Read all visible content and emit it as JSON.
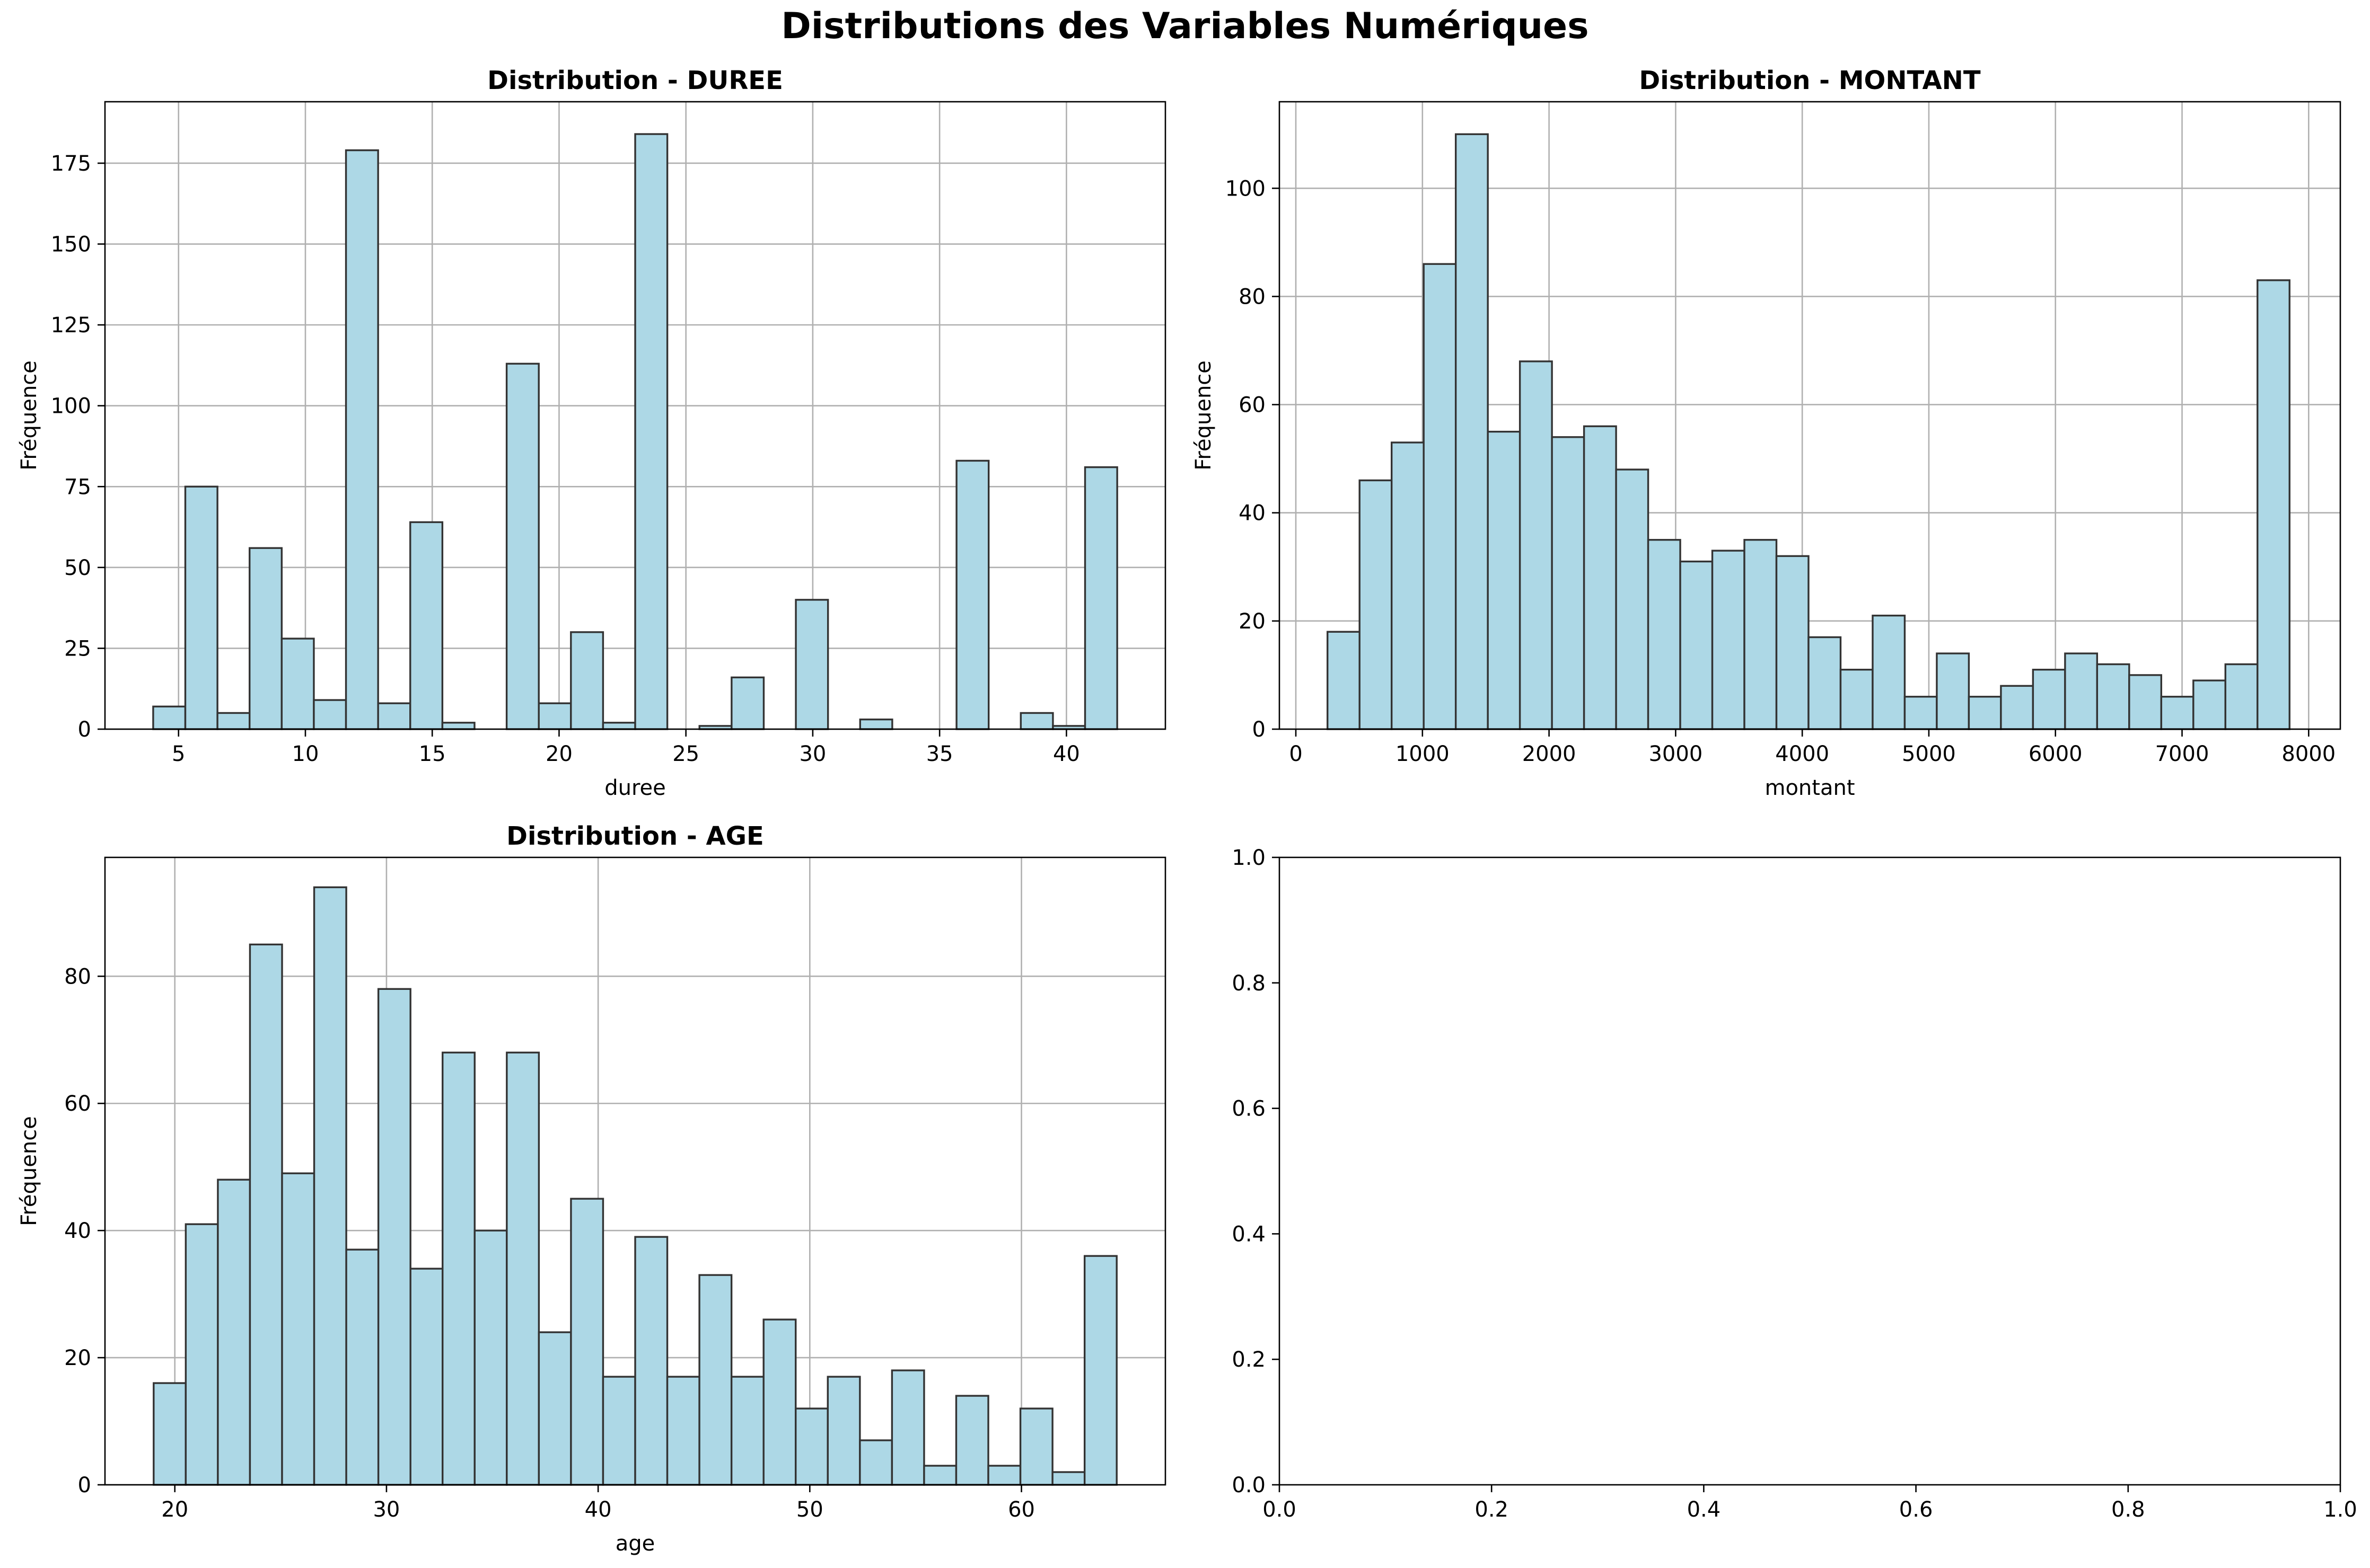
{
  "figure": {
    "title": "Distributions des Variables Numériques"
  },
  "style": {
    "bar_fill": "#add8e6",
    "bar_edge": "#333333",
    "grid_color": "#b0b0b0",
    "axis_color": "#000000"
  },
  "chart_data": [
    {
      "type": "bar",
      "title": "Distribution - DUREE",
      "xlabel": "duree",
      "ylabel": "Fréquence",
      "grid": true,
      "xlim": [
        2.1,
        43.9
      ],
      "ylim": [
        0,
        194
      ],
      "xticks": [
        5,
        10,
        15,
        20,
        25,
        30,
        35,
        40
      ],
      "yticks": [
        0,
        25,
        50,
        75,
        100,
        125,
        150,
        175
      ],
      "bin_start": 4,
      "bin_width": 1.2667,
      "values": [
        7,
        75,
        5,
        56,
        28,
        9,
        179,
        8,
        64,
        2,
        0,
        113,
        8,
        30,
        2,
        184,
        0,
        1,
        16,
        0,
        40,
        0,
        3,
        0,
        0,
        83,
        0,
        5,
        1,
        81
      ]
    },
    {
      "type": "bar",
      "title": "Distribution - MONTANT",
      "xlabel": "montant",
      "ylabel": "Fréquence",
      "grid": true,
      "xlim": [
        -130,
        8250
      ],
      "ylim": [
        0,
        116
      ],
      "xticks": [
        0,
        1000,
        2000,
        3000,
        4000,
        5000,
        6000,
        7000,
        8000
      ],
      "yticks": [
        0,
        20,
        40,
        60,
        80,
        100
      ],
      "bin_start": 250,
      "bin_width": 253.3,
      "values": [
        18,
        46,
        53,
        86,
        110,
        55,
        68,
        54,
        56,
        48,
        35,
        31,
        33,
        35,
        32,
        17,
        11,
        21,
        6,
        14,
        6,
        8,
        11,
        14,
        12,
        10,
        6,
        9,
        12,
        83
      ]
    },
    {
      "type": "bar",
      "title": "Distribution - AGE",
      "xlabel": "age",
      "ylabel": "Fréquence",
      "grid": true,
      "xlim": [
        16.7,
        66.8
      ],
      "ylim": [
        0,
        98.7
      ],
      "xticks": [
        20,
        30,
        40,
        50,
        60
      ],
      "yticks": [
        0,
        20,
        40,
        60,
        80
      ],
      "bin_start": 19,
      "bin_width": 1.5167,
      "values": [
        16,
        41,
        48,
        85,
        49,
        94,
        37,
        78,
        34,
        68,
        40,
        68,
        24,
        45,
        17,
        39,
        17,
        33,
        17,
        26,
        12,
        17,
        7,
        18,
        3,
        14,
        3,
        12,
        2,
        36
      ]
    },
    {
      "type": "bar",
      "title": "",
      "xlabel": "",
      "ylabel": "",
      "grid": false,
      "xlim": [
        0,
        1
      ],
      "ylim": [
        0,
        1
      ],
      "xticks": [
        0.0,
        0.2,
        0.4,
        0.6,
        0.8,
        1.0
      ],
      "yticks": [
        0.0,
        0.2,
        0.4,
        0.6,
        0.8,
        1.0
      ],
      "tick_decimals": 1,
      "values": []
    }
  ]
}
